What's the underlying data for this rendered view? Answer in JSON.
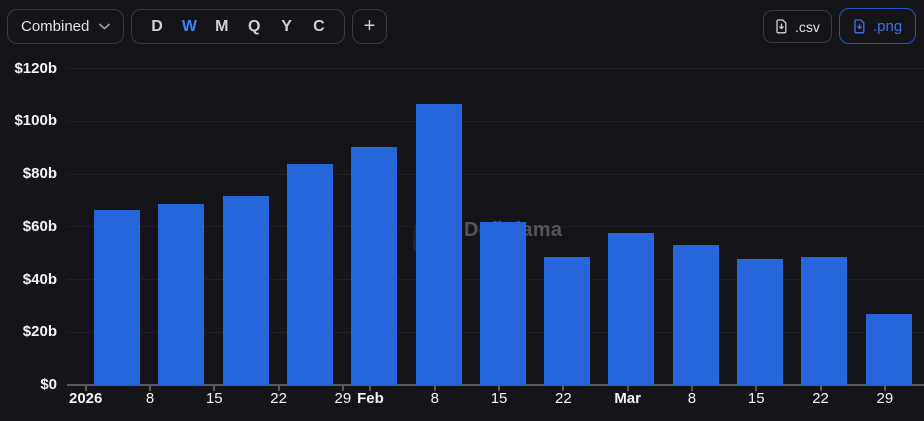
{
  "header": {
    "combined_label": "Combined",
    "periods": [
      "D",
      "W",
      "M",
      "Q",
      "Y",
      "C"
    ],
    "active_period": "W",
    "add_button_label": "+",
    "export_csv_label": ".csv",
    "export_png_label": ".png"
  },
  "watermark": {
    "text": "DefiLlama"
  },
  "colors": {
    "background": "#141419",
    "bar": "#2566da",
    "accent_blue": "#3f72ef",
    "active_period_blue": "#3f82f5",
    "gridline": "#1f1f25",
    "axis_line": "#595961"
  },
  "chart_data": {
    "type": "bar",
    "granularity": "weekly",
    "unit": "USD billions",
    "title": "",
    "xlabel": "",
    "ylabel": "",
    "ylim": [
      0,
      120
    ],
    "grid": true,
    "legend": false,
    "y_tick_labels": [
      "$0",
      "$20b",
      "$40b",
      "$60b",
      "$80b",
      "$100b",
      "$120b"
    ],
    "y_tick_values": [
      0,
      20,
      40,
      60,
      80,
      100,
      120
    ],
    "x_ticks": [
      {
        "label": "2026",
        "bold": true
      },
      {
        "label": "8",
        "bold": false
      },
      {
        "label": "15",
        "bold": false
      },
      {
        "label": "22",
        "bold": false
      },
      {
        "label": "29",
        "bold": false
      },
      {
        "label": "Feb",
        "bold": true
      },
      {
        "label": "8",
        "bold": false
      },
      {
        "label": "15",
        "bold": false
      },
      {
        "label": "22",
        "bold": false
      },
      {
        "label": "Mar",
        "bold": true
      },
      {
        "label": "8",
        "bold": false
      },
      {
        "label": "15",
        "bold": false
      },
      {
        "label": "22",
        "bold": false
      },
      {
        "label": "29",
        "bold": false
      }
    ],
    "values": [
      66.3,
      68.8,
      71.6,
      84,
      90.3,
      106.7,
      61.9,
      48.4,
      57.5,
      53.3,
      48,
      48.6,
      26.8
    ]
  }
}
